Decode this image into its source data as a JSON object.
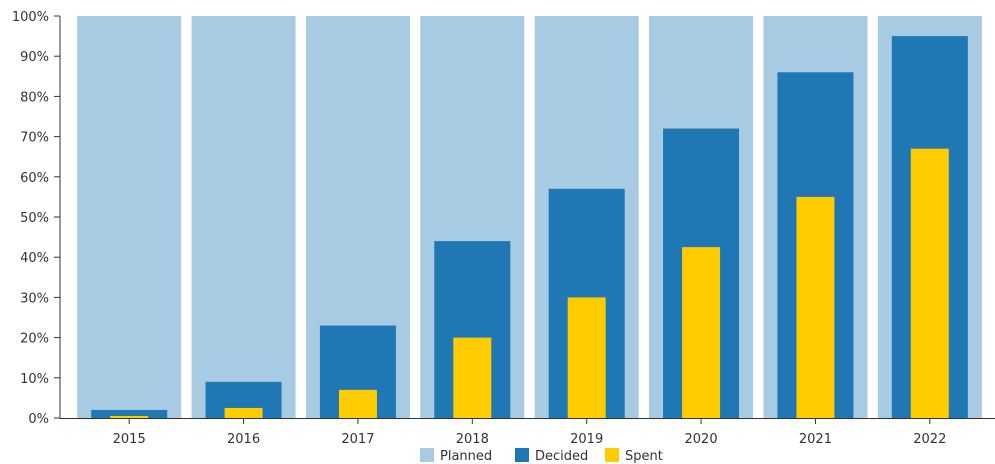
{
  "chart_data": {
    "type": "bar",
    "categories": [
      "2015",
      "2016",
      "2017",
      "2018",
      "2019",
      "2020",
      "2021",
      "2022"
    ],
    "series": [
      {
        "name": "Planned",
        "color": "#a6cbe2",
        "values": [
          100,
          100,
          100,
          100,
          100,
          100,
          100,
          100
        ]
      },
      {
        "name": "Decided",
        "color": "#1f77b4",
        "values": [
          2,
          9,
          23,
          44,
          57,
          72,
          86,
          95
        ]
      },
      {
        "name": "Spent",
        "color": "#ffcc00",
        "values": [
          0.5,
          2.5,
          7,
          20,
          30,
          42.5,
          55,
          67
        ]
      }
    ],
    "ylim": [
      0,
      100
    ],
    "yticks": [
      "0%",
      "10%",
      "20%",
      "30%",
      "40%",
      "50%",
      "60%",
      "70%",
      "80%",
      "90%",
      "100%"
    ],
    "legend_position": "bottom-center",
    "grid": false
  }
}
